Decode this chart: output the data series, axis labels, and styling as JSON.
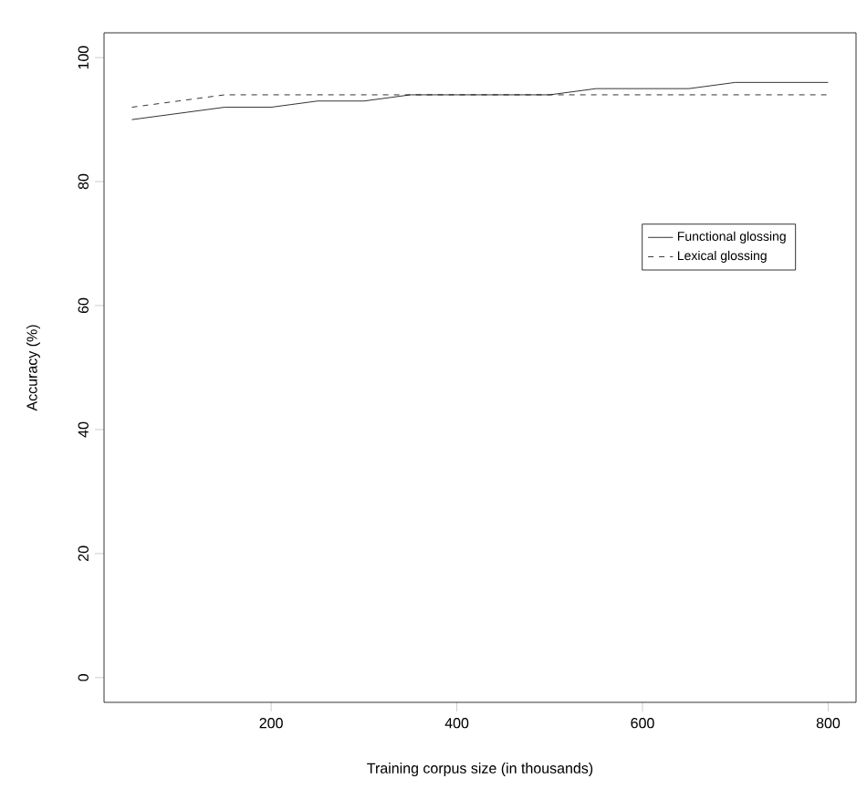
{
  "chart_data": {
    "type": "line",
    "xlabel": "Training corpus size (in thousands)",
    "ylabel": "Accuracy (%)",
    "x": [
      50,
      100,
      150,
      200,
      250,
      300,
      350,
      400,
      450,
      500,
      550,
      600,
      650,
      700,
      750,
      800
    ],
    "series": [
      {
        "name": "Functional glossing",
        "color": "#000000",
        "line_style": "solid",
        "values": [
          90,
          91,
          92,
          92,
          93,
          93,
          94,
          94,
          94,
          94,
          95,
          95,
          95,
          96,
          96,
          96
        ]
      },
      {
        "name": "Lexical glossing",
        "color": "#000000",
        "line_style": "dashed",
        "values": [
          92,
          93,
          94,
          94,
          94,
          94,
          94,
          94,
          94,
          94,
          94,
          94,
          94,
          94,
          94,
          94
        ]
      }
    ],
    "xlim": [
      20,
      830
    ],
    "ylim": [
      -4,
      104
    ],
    "xticks": [
      200,
      400,
      600,
      800
    ],
    "yticks": [
      0,
      20,
      40,
      60,
      80,
      100
    ],
    "legend": "right",
    "grid": false,
    "marker": "none"
  }
}
